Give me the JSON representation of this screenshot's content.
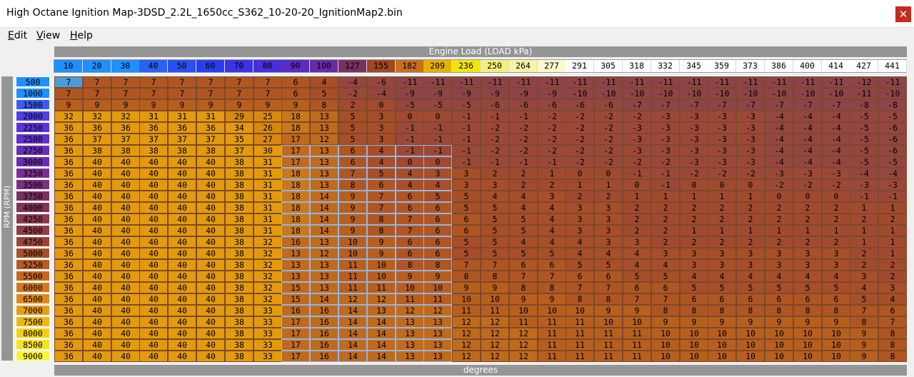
{
  "window": {
    "title": "High Octane Ignition Map-3DSD_2.2L_1650cc_S362_10-20-20_IgnitionMap2.bin",
    "close_glyph": "✕"
  },
  "menu": [
    {
      "underline": "E",
      "rest": "dit"
    },
    {
      "underline": "V",
      "rest": "iew"
    },
    {
      "underline": "H",
      "rest": "elp"
    }
  ],
  "x_axis_label": "Engine Load (LOAD kPa)",
  "y_axis_label": "RPM (RPM)",
  "units_label": "degrees",
  "load_axis": [
    10,
    20,
    30,
    40,
    50,
    60,
    70,
    80,
    90,
    100,
    127,
    155,
    182,
    209,
    236,
    250,
    264,
    277,
    291,
    305,
    318,
    332,
    345,
    359,
    373,
    386,
    400,
    414,
    427,
    441
  ],
  "load_header_colors": [
    "#1e90ff",
    "#1e90ff",
    "#1e90ff",
    "#2a62f2",
    "#2a50f2",
    "#2a3ef0",
    "#3c33e8",
    "#4a2fd8",
    "#5a2cc0",
    "#6a2aa8",
    "#7a3060",
    "#a0481e",
    "#c8701c",
    "#e6b000",
    "#f2e600",
    "#f6f07a",
    "#f8f4a6",
    "#fbf8cc",
    "#ffffff",
    "#ffffff",
    "#ffffff",
    "#ffffff",
    "#ffffff",
    "#ffffff",
    "#ffffff",
    "#ffffff",
    "#ffffff",
    "#ffffff",
    "#ffffff",
    "#ffffff"
  ],
  "rpm_axis": [
    500,
    1000,
    1500,
    2000,
    2250,
    2500,
    2750,
    3000,
    3250,
    3500,
    3750,
    4000,
    4250,
    4500,
    4750,
    5000,
    5250,
    5500,
    6000,
    6500,
    7000,
    7500,
    8000,
    8500,
    9000
  ],
  "rpm_header_colors": [
    "#1e90ff",
    "#1e90ff",
    "#3a5cf0",
    "#4a40e6",
    "#5a34d8",
    "#6030c8",
    "#6a2eb8",
    "#6a2eb0",
    "#7a2f90",
    "#7a2f80",
    "#7a3060",
    "#80355a",
    "#8a3a50",
    "#903e48",
    "#9a4438",
    "#a8502a",
    "#b85a22",
    "#c8661e",
    "#d27820",
    "#dc8a1c",
    "#e69e18",
    "#efb814",
    "#f4d010",
    "#f8e41c",
    "#fbf23c"
  ],
  "selected_rows": [
    6,
    25
  ],
  "selected_cols": [
    8,
    14
  ],
  "current_cell": [
    0,
    0
  ],
  "ignition_table": [
    [
      7,
      7,
      7,
      7,
      7,
      7,
      7,
      7,
      6,
      4,
      -4,
      -6,
      -11,
      -11,
      -11,
      -11,
      -11,
      -11,
      -11,
      -11,
      -11,
      -11,
      -11,
      -11,
      -11,
      -11,
      -11,
      -11,
      -12,
      -11
    ],
    [
      7,
      7,
      7,
      7,
      7,
      7,
      7,
      7,
      6,
      5,
      -2,
      -4,
      -9,
      -9,
      -9,
      -9,
      -9,
      -9,
      -10,
      -10,
      -10,
      -10,
      -10,
      -10,
      -10,
      -10,
      -10,
      -10,
      -11,
      -10
    ],
    [
      9,
      9,
      9,
      9,
      9,
      9,
      9,
      9,
      9,
      8,
      2,
      0,
      -5,
      -5,
      -5,
      -6,
      -6,
      -6,
      -6,
      -6,
      -7,
      -7,
      -7,
      -7,
      -7,
      -7,
      -7,
      -7,
      -8,
      -8
    ],
    [
      32,
      32,
      32,
      31,
      31,
      31,
      29,
      25,
      18,
      13,
      5,
      3,
      0,
      0,
      -1,
      -1,
      -1,
      -2,
      -2,
      -2,
      -2,
      -3,
      -3,
      -3,
      -3,
      -4,
      -4,
      -4,
      -5,
      -5
    ],
    [
      36,
      36,
      36,
      36,
      36,
      36,
      34,
      26,
      18,
      13,
      5,
      3,
      -1,
      -1,
      -1,
      -2,
      -2,
      -2,
      -2,
      -2,
      -3,
      -3,
      -3,
      -3,
      -3,
      -4,
      -4,
      -4,
      -5,
      -6
    ],
    [
      36,
      37,
      37,
      37,
      37,
      37,
      35,
      27,
      17,
      12,
      5,
      3,
      -1,
      -1,
      -1,
      -2,
      -2,
      -2,
      -2,
      -2,
      -3,
      -3,
      -3,
      -3,
      -3,
      -4,
      -4,
      -4,
      -5,
      -6
    ],
    [
      36,
      38,
      38,
      38,
      38,
      38,
      37,
      30,
      17,
      13,
      6,
      4,
      -1,
      -1,
      -1,
      -2,
      -2,
      -2,
      -2,
      -2,
      -3,
      -3,
      -3,
      -3,
      -3,
      -4,
      -4,
      -4,
      -5,
      -6
    ],
    [
      36,
      40,
      40,
      40,
      40,
      40,
      38,
      31,
      17,
      13,
      6,
      4,
      0,
      0,
      -1,
      -1,
      -1,
      -1,
      -2,
      -2,
      -2,
      -2,
      -3,
      -3,
      -3,
      -4,
      -4,
      -4,
      -5,
      -5
    ],
    [
      36,
      40,
      40,
      40,
      40,
      40,
      38,
      31,
      18,
      13,
      7,
      5,
      4,
      3,
      3,
      2,
      2,
      1,
      0,
      0,
      -1,
      -1,
      -2,
      -2,
      -2,
      -3,
      -3,
      -3,
      -4,
      -4
    ],
    [
      36,
      40,
      40,
      40,
      40,
      40,
      38,
      31,
      18,
      13,
      8,
      6,
      4,
      4,
      3,
      3,
      2,
      2,
      1,
      1,
      0,
      -1,
      0,
      0,
      0,
      -2,
      -2,
      -2,
      -3,
      -3
    ],
    [
      36,
      40,
      40,
      40,
      40,
      40,
      38,
      31,
      18,
      14,
      9,
      7,
      6,
      5,
      5,
      4,
      4,
      3,
      2,
      2,
      1,
      1,
      1,
      1,
      1,
      0,
      0,
      0,
      -1,
      -1
    ],
    [
      36,
      40,
      40,
      40,
      40,
      40,
      38,
      31,
      18,
      14,
      9,
      7,
      6,
      6,
      5,
      5,
      4,
      4,
      3,
      3,
      2,
      2,
      2,
      2,
      2,
      2,
      2,
      2,
      1,
      1
    ],
    [
      36,
      40,
      40,
      40,
      40,
      40,
      38,
      31,
      18,
      14,
      9,
      8,
      7,
      6,
      6,
      5,
      5,
      4,
      3,
      3,
      2,
      2,
      2,
      2,
      2,
      2,
      2,
      2,
      2,
      2
    ],
    [
      36,
      40,
      40,
      40,
      40,
      40,
      38,
      31,
      18,
      14,
      9,
      8,
      7,
      6,
      6,
      5,
      5,
      4,
      3,
      3,
      2,
      2,
      1,
      1,
      1,
      1,
      1,
      1,
      1,
      1
    ],
    [
      36,
      40,
      40,
      40,
      40,
      40,
      38,
      32,
      16,
      13,
      10,
      9,
      6,
      6,
      5,
      5,
      4,
      4,
      4,
      3,
      3,
      2,
      2,
      2,
      2,
      2,
      2,
      2,
      1,
      1
    ],
    [
      36,
      40,
      40,
      40,
      40,
      40,
      38,
      32,
      13,
      12,
      10,
      9,
      6,
      6,
      5,
      5,
      5,
      5,
      4,
      4,
      4,
      3,
      3,
      3,
      3,
      3,
      3,
      3,
      2,
      1
    ],
    [
      36,
      40,
      40,
      40,
      40,
      40,
      38,
      32,
      13,
      13,
      11,
      10,
      8,
      8,
      7,
      7,
      6,
      6,
      5,
      5,
      4,
      4,
      3,
      3,
      3,
      3,
      3,
      3,
      2,
      2
    ],
    [
      36,
      40,
      40,
      40,
      40,
      40,
      38,
      32,
      13,
      13,
      11,
      10,
      9,
      9,
      8,
      8,
      7,
      7,
      6,
      6,
      5,
      5,
      4,
      4,
      4,
      4,
      4,
      4,
      3,
      2
    ],
    [
      36,
      40,
      40,
      40,
      40,
      40,
      38,
      32,
      15,
      13,
      11,
      11,
      10,
      10,
      9,
      9,
      8,
      8,
      7,
      7,
      6,
      6,
      5,
      5,
      5,
      5,
      5,
      5,
      4,
      3
    ],
    [
      36,
      40,
      40,
      40,
      40,
      40,
      38,
      32,
      15,
      14,
      12,
      12,
      11,
      11,
      10,
      10,
      9,
      9,
      8,
      8,
      7,
      7,
      6,
      6,
      6,
      6,
      6,
      6,
      5,
      4
    ],
    [
      36,
      40,
      40,
      40,
      40,
      40,
      38,
      33,
      16,
      16,
      14,
      13,
      12,
      12,
      11,
      11,
      10,
      10,
      10,
      9,
      9,
      8,
      8,
      8,
      8,
      8,
      8,
      8,
      7,
      6
    ],
    [
      36,
      40,
      40,
      40,
      40,
      40,
      38,
      33,
      17,
      16,
      14,
      14,
      13,
      13,
      12,
      12,
      11,
      11,
      11,
      10,
      10,
      9,
      9,
      9,
      9,
      9,
      9,
      9,
      8,
      7
    ],
    [
      36,
      40,
      40,
      40,
      40,
      40,
      38,
      33,
      17,
      16,
      14,
      14,
      13,
      13,
      12,
      12,
      12,
      11,
      11,
      11,
      11,
      10,
      10,
      10,
      10,
      10,
      10,
      10,
      9,
      8
    ],
    [
      36,
      40,
      40,
      40,
      40,
      40,
      38,
      33,
      17,
      16,
      14,
      14,
      13,
      13,
      12,
      12,
      12,
      11,
      11,
      11,
      11,
      10,
      10,
      10,
      10,
      10,
      10,
      10,
      9,
      8
    ],
    [
      36,
      40,
      40,
      40,
      40,
      40,
      38,
      33,
      17,
      16,
      14,
      14,
      13,
      13,
      12,
      12,
      12,
      11,
      11,
      11,
      11,
      10,
      10,
      10,
      10,
      10,
      10,
      10,
      9,
      8
    ]
  ]
}
